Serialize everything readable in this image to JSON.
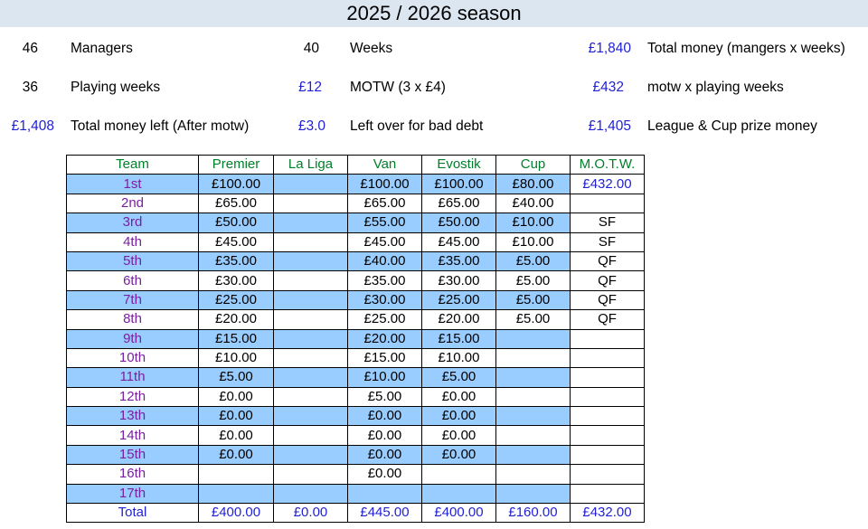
{
  "title": "2025 / 2026 season",
  "info": {
    "managers_value": "46",
    "managers_label": "Managers",
    "weeks_value": "40",
    "weeks_label": "Weeks",
    "total_money_value": "£1,840",
    "total_money_label": "Total money (mangers x weeks)",
    "playing_weeks_value": "36",
    "playing_weeks_label": "Playing weeks",
    "motw_value": "£12",
    "motw_label": "MOTW (3 x £4)",
    "motw_total_value": "£432",
    "motw_total_label": "motw x playing weeks",
    "money_left_value": "£1,408",
    "money_left_label": "Total money left (After motw)",
    "left_over_value": "£3.0",
    "left_over_label": "Left over for bad debt",
    "league_cup_value": "£1,405",
    "league_cup_label": "League & Cup prize money"
  },
  "table": {
    "headers": [
      "Team",
      "Premier",
      "La Liga",
      "Van",
      "Evostik",
      "Cup",
      "M.O.T.W."
    ],
    "rows": [
      {
        "team": "1st",
        "premier": "£100.00",
        "laliga": "",
        "van": "£100.00",
        "evostik": "£100.00",
        "cup": "£80.00",
        "motw": "£432.00"
      },
      {
        "team": "2nd",
        "premier": "£65.00",
        "laliga": "",
        "van": "£65.00",
        "evostik": "£65.00",
        "cup": "£40.00",
        "motw": ""
      },
      {
        "team": "3rd",
        "premier": "£50.00",
        "laliga": "",
        "van": "£55.00",
        "evostik": "£50.00",
        "cup": "£10.00",
        "motw": "SF"
      },
      {
        "team": "4th",
        "premier": "£45.00",
        "laliga": "",
        "van": "£45.00",
        "evostik": "£45.00",
        "cup": "£10.00",
        "motw": "SF"
      },
      {
        "team": "5th",
        "premier": "£35.00",
        "laliga": "",
        "van": "£40.00",
        "evostik": "£35.00",
        "cup": "£5.00",
        "motw": "QF"
      },
      {
        "team": "6th",
        "premier": "£30.00",
        "laliga": "",
        "van": "£35.00",
        "evostik": "£30.00",
        "cup": "£5.00",
        "motw": "QF"
      },
      {
        "team": "7th",
        "premier": "£25.00",
        "laliga": "",
        "van": "£30.00",
        "evostik": "£25.00",
        "cup": "£5.00",
        "motw": "QF"
      },
      {
        "team": "8th",
        "premier": "£20.00",
        "laliga": "",
        "van": "£25.00",
        "evostik": "£20.00",
        "cup": "£5.00",
        "motw": "QF"
      },
      {
        "team": "9th",
        "premier": "£15.00",
        "laliga": "",
        "van": "£20.00",
        "evostik": "£15.00",
        "cup": "",
        "motw": ""
      },
      {
        "team": "10th",
        "premier": "£10.00",
        "laliga": "",
        "van": "£15.00",
        "evostik": "£10.00",
        "cup": "",
        "motw": ""
      },
      {
        "team": "11th",
        "premier": "£5.00",
        "laliga": "",
        "van": "£10.00",
        "evostik": "£5.00",
        "cup": "",
        "motw": ""
      },
      {
        "team": "12th",
        "premier": "£0.00",
        "laliga": "",
        "van": "£5.00",
        "evostik": "£0.00",
        "cup": "",
        "motw": ""
      },
      {
        "team": "13th",
        "premier": "£0.00",
        "laliga": "",
        "van": "£0.00",
        "evostik": "£0.00",
        "cup": "",
        "motw": ""
      },
      {
        "team": "14th",
        "premier": "£0.00",
        "laliga": "",
        "van": "£0.00",
        "evostik": "£0.00",
        "cup": "",
        "motw": ""
      },
      {
        "team": "15th",
        "premier": "£0.00",
        "laliga": "",
        "van": "£0.00",
        "evostik": "£0.00",
        "cup": "",
        "motw": ""
      },
      {
        "team": "16th",
        "premier": "",
        "laliga": "",
        "van": "£0.00",
        "evostik": "",
        "cup": "",
        "motw": ""
      },
      {
        "team": "17th",
        "premier": "",
        "laliga": "",
        "van": "",
        "evostik": "",
        "cup": "",
        "motw": ""
      }
    ],
    "total": {
      "team": "Total",
      "premier": "£400.00",
      "laliga": "£0.00",
      "van": "£445.00",
      "evostik": "£400.00",
      "cup": "£160.00",
      "motw": "£432.00"
    }
  },
  "colors": {
    "highlight": "#99ccff",
    "header_bg": "#dce6f1",
    "value_blue": "#1f1fd6",
    "team_purple": "#7a1fa2",
    "header_green": "#00802b"
  }
}
